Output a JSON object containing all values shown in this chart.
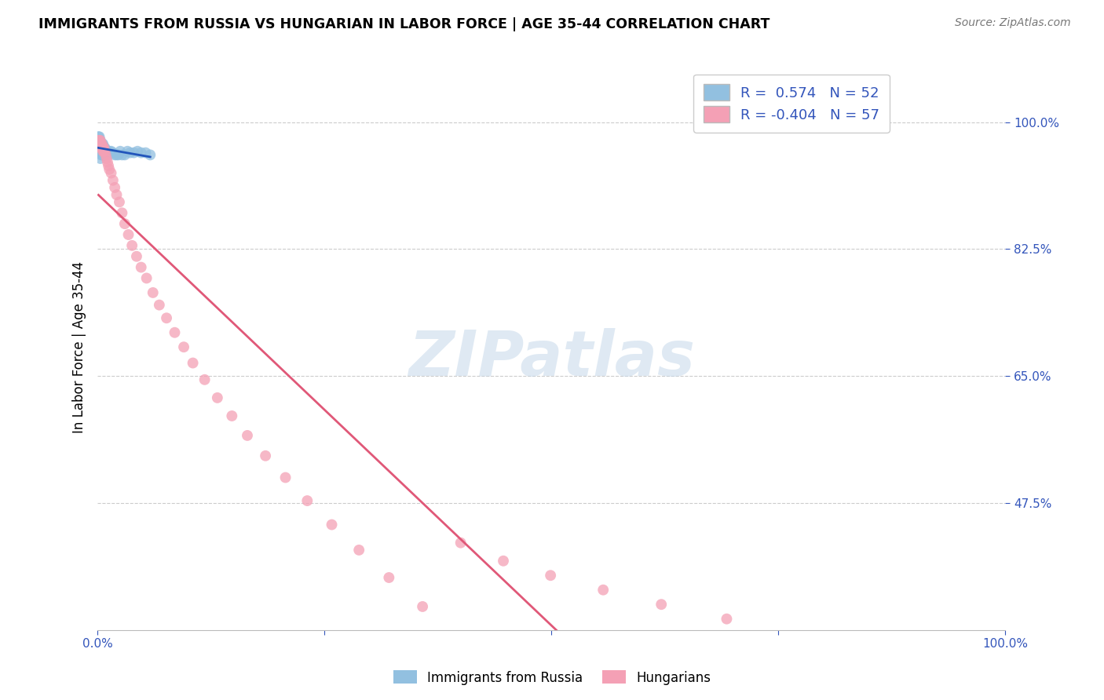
{
  "title": "IMMIGRANTS FROM RUSSIA VS HUNGARIAN IN LABOR FORCE | AGE 35-44 CORRELATION CHART",
  "source": "Source: ZipAtlas.com",
  "ylabel": "In Labor Force | Age 35-44",
  "ytick_labels": [
    "100.0%",
    "82.5%",
    "65.0%",
    "47.5%"
  ],
  "ytick_values": [
    1.0,
    0.825,
    0.65,
    0.475
  ],
  "xlim": [
    0.0,
    1.0
  ],
  "ylim": [
    0.3,
    1.08
  ],
  "legend_r_russia": " 0.574",
  "legend_n_russia": "52",
  "legend_r_hungarian": "-0.404",
  "legend_n_hungarian": "57",
  "russia_color": "#92c0e0",
  "hungarian_color": "#f4a0b5",
  "russia_line_color": "#2255bb",
  "hungarian_line_color": "#e05878",
  "watermark": "ZIPatlas",
  "russia_scatter_x": [
    0.001,
    0.001,
    0.001,
    0.002,
    0.002,
    0.002,
    0.002,
    0.002,
    0.002,
    0.003,
    0.003,
    0.003,
    0.003,
    0.003,
    0.004,
    0.004,
    0.004,
    0.004,
    0.005,
    0.005,
    0.005,
    0.005,
    0.006,
    0.006,
    0.006,
    0.006,
    0.007,
    0.007,
    0.007,
    0.008,
    0.008,
    0.009,
    0.009,
    0.01,
    0.011,
    0.012,
    0.013,
    0.015,
    0.017,
    0.019,
    0.021,
    0.023,
    0.025,
    0.027,
    0.03,
    0.033,
    0.036,
    0.04,
    0.044,
    0.048,
    0.053,
    0.058
  ],
  "russia_scatter_y": [
    0.975,
    0.98,
    0.97,
    0.975,
    0.97,
    0.98,
    0.97,
    0.965,
    0.96,
    0.975,
    0.97,
    0.965,
    0.96,
    0.95,
    0.97,
    0.965,
    0.96,
    0.955,
    0.97,
    0.965,
    0.96,
    0.955,
    0.97,
    0.965,
    0.96,
    0.955,
    0.965,
    0.96,
    0.955,
    0.965,
    0.958,
    0.962,
    0.955,
    0.96,
    0.958,
    0.955,
    0.96,
    0.96,
    0.958,
    0.955,
    0.955,
    0.955,
    0.96,
    0.955,
    0.955,
    0.96,
    0.958,
    0.958,
    0.96,
    0.958,
    0.958,
    0.955
  ],
  "hungarian_scatter_x": [
    0.001,
    0.001,
    0.002,
    0.002,
    0.003,
    0.003,
    0.003,
    0.004,
    0.004,
    0.005,
    0.005,
    0.006,
    0.006,
    0.007,
    0.007,
    0.008,
    0.009,
    0.01,
    0.011,
    0.012,
    0.013,
    0.015,
    0.017,
    0.019,
    0.021,
    0.024,
    0.027,
    0.03,
    0.034,
    0.038,
    0.043,
    0.048,
    0.054,
    0.061,
    0.068,
    0.076,
    0.085,
    0.095,
    0.105,
    0.118,
    0.132,
    0.148,
    0.165,
    0.185,
    0.207,
    0.231,
    0.258,
    0.288,
    0.321,
    0.358,
    0.4,
    0.447,
    0.499,
    0.557,
    0.621,
    0.693,
    0.773
  ],
  "hungarian_scatter_y": [
    0.975,
    0.97,
    0.975,
    0.97,
    0.975,
    0.97,
    0.965,
    0.97,
    0.965,
    0.97,
    0.965,
    0.965,
    0.96,
    0.965,
    0.96,
    0.96,
    0.955,
    0.95,
    0.945,
    0.94,
    0.935,
    0.93,
    0.92,
    0.91,
    0.9,
    0.89,
    0.875,
    0.86,
    0.845,
    0.83,
    0.815,
    0.8,
    0.785,
    0.765,
    0.748,
    0.73,
    0.71,
    0.69,
    0.668,
    0.645,
    0.62,
    0.595,
    0.568,
    0.54,
    0.51,
    0.478,
    0.445,
    0.41,
    0.372,
    0.332,
    0.42,
    0.395,
    0.375,
    0.355,
    0.335,
    0.315,
    1.0
  ]
}
